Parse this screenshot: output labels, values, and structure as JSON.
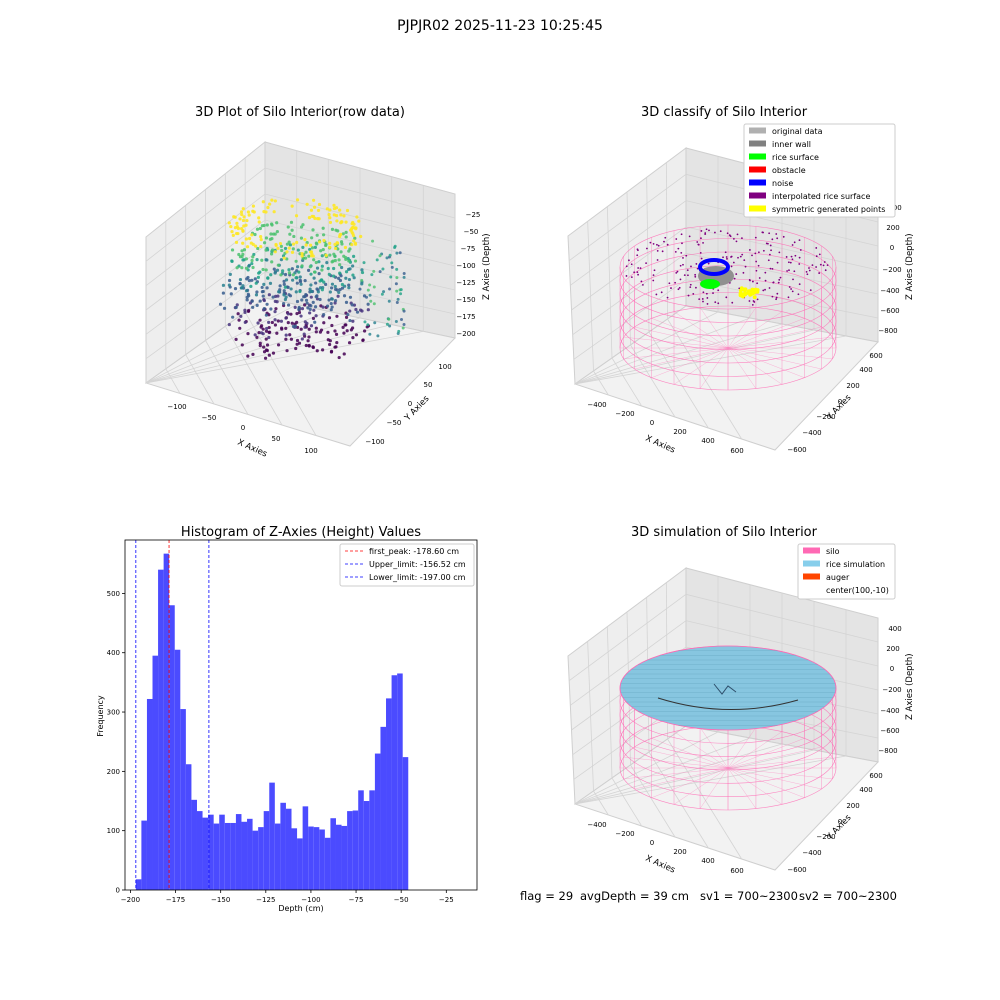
{
  "figure": {
    "suptitle": "PJPJR02 2025-11-23 10:25:45",
    "status": {
      "flag": "flag = 29",
      "avg_depth": "avgDepth = 39 cm",
      "sv1": "sv1 = 700~2300",
      "sv2": "sv2 = 700~2300"
    }
  },
  "colors": {
    "histogram_bar": "#4b4bff",
    "first_peak_line": "#ff0000",
    "limit_lines": "#0000ff",
    "pane_left": "#eeeeee",
    "pane_right": "#e4e4e4",
    "pane_floor": "#f2f2f2",
    "silo_wire": "#ff69b4",
    "rice_simulation": "#87c6e0"
  },
  "chart_data": [
    {
      "type": "scatter3d",
      "title": "3D Plot of Silo Interior(row data)",
      "xlabel": "X Axies",
      "ylabel": "Y Axies",
      "zlabel": "Z Axies (Depth)",
      "xticks": [
        "−100",
        "−50",
        "0",
        "50",
        "100"
      ],
      "yticks": [
        "−100",
        "−50",
        "0",
        "50",
        "100"
      ],
      "zticks": [
        "−25",
        "−50",
        "−75",
        "−100",
        "−125",
        "−150",
        "−175",
        "−200"
      ],
      "colormap": "viridis",
      "grid": true
    },
    {
      "type": "scatter3d",
      "title": "3D classify of Silo Interior",
      "xlabel": "X Axies",
      "ylabel": "Y Axies",
      "zlabel": "Z Axies (Depth)",
      "xticks": [
        "−400",
        "−200",
        "0",
        "200",
        "400",
        "600"
      ],
      "yticks": [
        "−600",
        "−400",
        "−200",
        "0",
        "200",
        "400",
        "600"
      ],
      "zticks": [
        "400",
        "200",
        "0",
        "−200",
        "−400",
        "−600",
        "−800"
      ],
      "legend_position": "top-right",
      "legend": [
        {
          "label": "original data",
          "color": "#b0b0b0"
        },
        {
          "label": "inner wall",
          "color": "#808080"
        },
        {
          "label": "rice surface",
          "color": "#00ff00"
        },
        {
          "label": "obstacle",
          "color": "#ff0000"
        },
        {
          "label": "noise",
          "color": "#0000ff"
        },
        {
          "label": "interpolated rice surface",
          "color": "#800080"
        },
        {
          "label": "symmetric generated points",
          "color": "#ffff00"
        }
      ],
      "grid": true
    },
    {
      "type": "bar",
      "title": "Histogram of Z-Axies (Height) Values",
      "xlabel": "Depth (cm)",
      "ylabel": "Frequency",
      "xlim": [
        -203,
        -8
      ],
      "ylim": [
        0,
        590
      ],
      "xticks": [
        -200,
        -175,
        -150,
        -125,
        -100,
        -75,
        -50,
        -25
      ],
      "yticks": [
        0,
        100,
        200,
        300,
        400,
        500
      ],
      "bin_start": -197,
      "bin_width": 3.08,
      "values": [
        18,
        117,
        322,
        395,
        540,
        567,
        480,
        405,
        305,
        212,
        152,
        133,
        122,
        127,
        112,
        127,
        113,
        113,
        128,
        115,
        120,
        100,
        106,
        133,
        181,
        112,
        147,
        137,
        104,
        87,
        141,
        107,
        106,
        102,
        88,
        121,
        110,
        108,
        133,
        134,
        168,
        150,
        168,
        230,
        275,
        323,
        362,
        365,
        224
      ],
      "reference_lines": [
        {
          "label": "first_peak: -178.60 cm",
          "x": -178.6,
          "color": "#ff0000"
        },
        {
          "label": "Upper_limit: -156.52 cm",
          "x": -156.52,
          "color": "#0000ff"
        },
        {
          "label": "Lower_limit: -197.00 cm",
          "x": -197.0,
          "color": "#0000ff"
        }
      ],
      "legend_position": "top-right",
      "grid": false
    },
    {
      "type": "surface3d",
      "title": "3D simulation of Silo Interior",
      "xlabel": "X Axies",
      "ylabel": "Y Axies",
      "zlabel": "Z Axies (Depth)",
      "xticks": [
        "−400",
        "−200",
        "0",
        "200",
        "400",
        "600"
      ],
      "yticks": [
        "−600",
        "−400",
        "−200",
        "0",
        "200",
        "400",
        "600"
      ],
      "zticks": [
        "400",
        "200",
        "0",
        "−200",
        "−400",
        "−600",
        "−800"
      ],
      "legend_position": "top-right",
      "legend": [
        {
          "label": "silo",
          "color": "#ff69b4"
        },
        {
          "label": "rice simulation",
          "color": "#87ceeb"
        },
        {
          "label": "auger",
          "color": "#ff4500"
        },
        {
          "label": "center(100,-10)",
          "color": ""
        }
      ],
      "grid": true
    }
  ]
}
